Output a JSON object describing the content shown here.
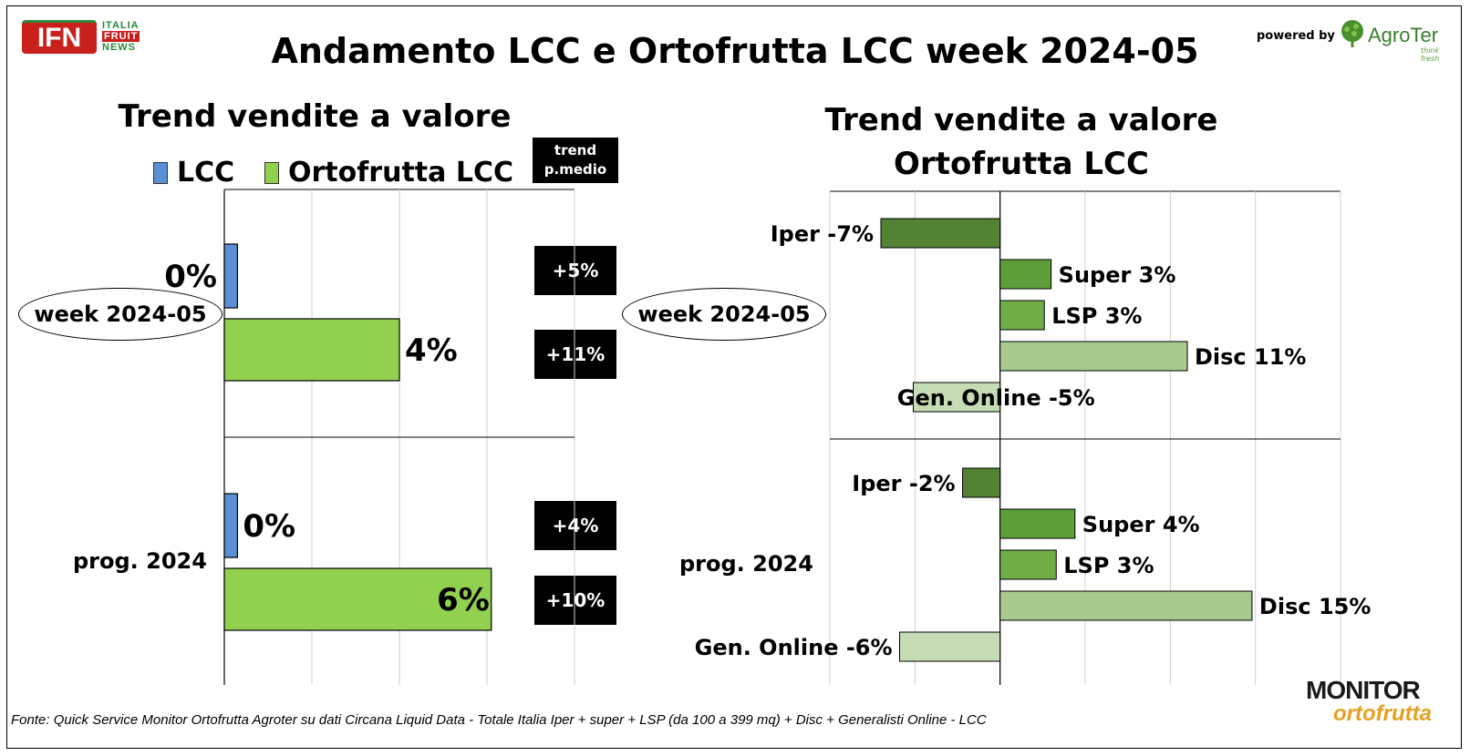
{
  "header": {
    "title": "Andamento LCC e Ortofrutta LCC week 2024-05",
    "ifn_logo": {
      "mark": "IFN",
      "lines": [
        "ITALIA",
        "FRUIT",
        "NEWS"
      ]
    },
    "powered_by": "powered by",
    "agroter": {
      "name": "AgroTer",
      "tagline": "think fresh"
    }
  },
  "left_panel": {
    "title": "Trend vendite a valore",
    "trend_header": [
      "trend",
      "p.medio"
    ]
  },
  "right_panel": {
    "title_lines": [
      "Trend vendite a valore",
      "Ortofrutta LCC"
    ]
  },
  "footer": {
    "source": "Fonte: Quick Service Monitor Ortofrutta Agroter su dati Circana Liquid Data - Totale Italia Iper + super + LSP (da 100 a 399 mq) + Disc + Generalisti Online - LCC",
    "monitor_logo": {
      "word": "MONITOR",
      "sub": "ortofrutta"
    }
  },
  "chart_data": [
    {
      "type": "bar",
      "orientation": "horizontal",
      "title": "Trend vendite a valore",
      "legend": {
        "placement": "top",
        "entries": [
          "LCC",
          "Ortofrutta LCC"
        ]
      },
      "categories": [
        "week 2024-05",
        "prog. 2024"
      ],
      "series": [
        {
          "name": "LCC",
          "values": [
            0.3,
            0.3
          ],
          "labels": [
            "0%",
            "0%"
          ],
          "color": "#5b8fd6"
        },
        {
          "name": "Ortofrutta LCC",
          "values": [
            4,
            6.1
          ],
          "labels": [
            "4%",
            "6%"
          ],
          "color": "#92d050"
        }
      ],
      "trend_p_medio": {
        "header": "trend p.medio",
        "week 2024-05": [
          "+5%",
          "+11%"
        ],
        "prog. 2024": [
          "+4%",
          "+10%"
        ]
      },
      "xlim": [
        0,
        8
      ],
      "grid": true
    },
    {
      "type": "bar",
      "orientation": "horizontal",
      "title": "Trend vendite a valore Ortofrutta LCC",
      "categories": [
        "week 2024-05",
        "prog. 2024"
      ],
      "channels": [
        "Iper",
        "Super",
        "LSP",
        "Disc",
        "Gen. Online"
      ],
      "channel_colors": [
        "#548235",
        "#5e9e3a",
        "#70ad47",
        "#a9c98f",
        "#c6dcb4"
      ],
      "groups": [
        {
          "name": "week 2024-05",
          "bars": [
            {
              "channel": "Iper",
              "value": -7,
              "label": "Iper -7%"
            },
            {
              "channel": "Super",
              "value": 3,
              "label": "Super 3%"
            },
            {
              "channel": "LSP",
              "value": 2.6,
              "label": "LSP 3%"
            },
            {
              "channel": "Disc",
              "value": 11,
              "label": "Disc 11%"
            },
            {
              "channel": "Gen. Online",
              "value": -5.1,
              "label": "Gen. Online -5%"
            }
          ]
        },
        {
          "name": "prog. 2024",
          "bars": [
            {
              "channel": "Iper",
              "value": -2.2,
              "label": "Iper -2%"
            },
            {
              "channel": "Super",
              "value": 4.4,
              "label": "Super 4%"
            },
            {
              "channel": "LSP",
              "value": 3.3,
              "label": "LSP 3%"
            },
            {
              "channel": "Disc",
              "value": 14.8,
              "label": "Disc 15%"
            },
            {
              "channel": "Gen. Online",
              "value": -5.9,
              "label": "Gen. Online -6%"
            }
          ]
        }
      ],
      "xlim": [
        -10,
        20
      ],
      "grid": true
    }
  ]
}
